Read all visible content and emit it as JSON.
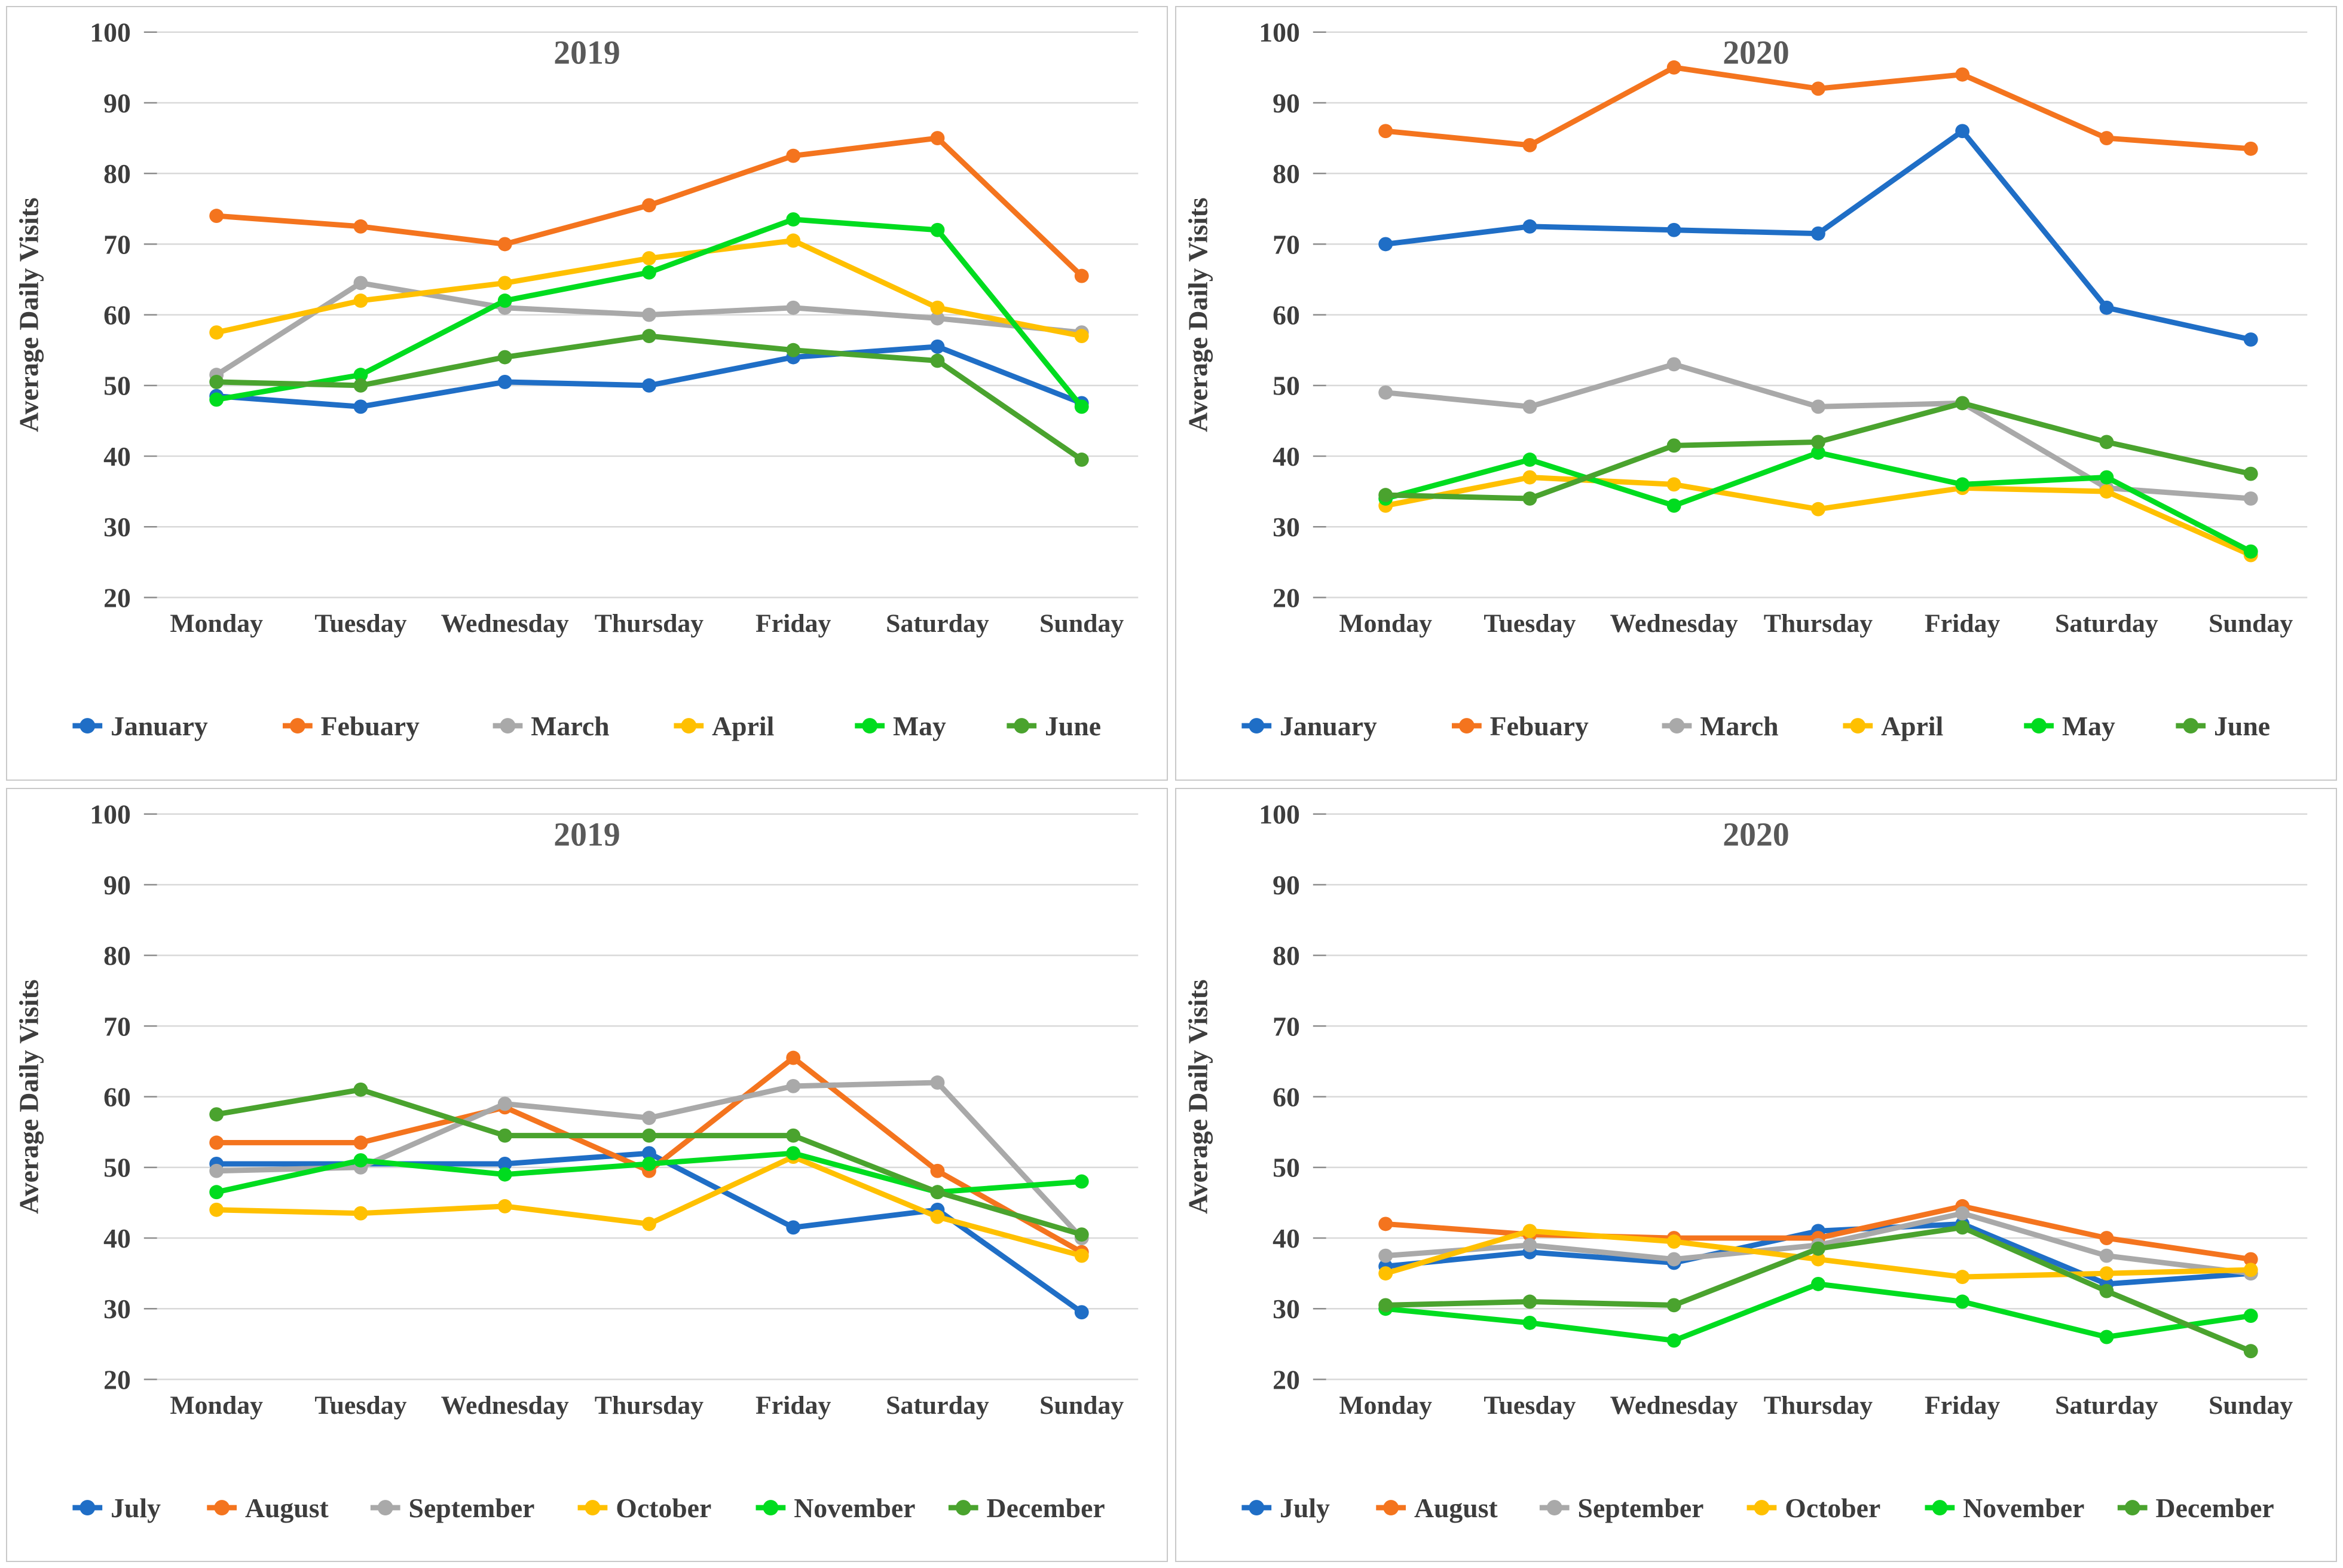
{
  "chart_data": [
    {
      "id": "2019-jan-jun",
      "type": "line",
      "title": "2019",
      "ylabel": "Average Daily Visits",
      "categories": [
        "Monday",
        "Tuesday",
        "Wednesday",
        "Thursday",
        "Friday",
        "Saturday",
        "Sunday"
      ],
      "ylim": [
        20,
        100
      ],
      "yticks": [
        100,
        90,
        80,
        70,
        60,
        50,
        40,
        30,
        20
      ],
      "grid": true,
      "legend_position": "bottom",
      "series": [
        {
          "name": "January",
          "color": "#1F6EC6",
          "values": [
            48.5,
            47,
            50.5,
            50,
            54,
            55.5,
            47.5
          ]
        },
        {
          "name": "Febuary",
          "color": "#F4741E",
          "values": [
            74,
            72.5,
            70,
            75.5,
            82.5,
            85,
            65.5
          ]
        },
        {
          "name": "March",
          "color": "#A9A9A9",
          "values": [
            51.5,
            64.5,
            61,
            60,
            61,
            59.5,
            57.5
          ]
        },
        {
          "name": "April",
          "color": "#FFC000",
          "values": [
            57.5,
            62,
            64.5,
            68,
            70.5,
            61,
            57
          ]
        },
        {
          "name": "May",
          "color": "#00DC1F",
          "values": [
            48,
            51.5,
            62,
            66,
            73.5,
            72,
            47
          ]
        },
        {
          "name": "June",
          "color": "#4AA32E",
          "values": [
            50.5,
            50,
            54,
            57,
            55,
            53.5,
            39.5
          ]
        }
      ]
    },
    {
      "id": "2020-jan-jun",
      "type": "line",
      "title": "2020",
      "ylabel": "Average Daily Visits",
      "categories": [
        "Monday",
        "Tuesday",
        "Wednesday",
        "Thursday",
        "Friday",
        "Saturday",
        "Sunday"
      ],
      "ylim": [
        20,
        100
      ],
      "yticks": [
        100,
        90,
        80,
        70,
        60,
        50,
        40,
        30,
        20
      ],
      "grid": true,
      "legend_position": "bottom",
      "series": [
        {
          "name": "January",
          "color": "#1F6EC6",
          "values": [
            70,
            72.5,
            72,
            71.5,
            86,
            61,
            56.5
          ]
        },
        {
          "name": "Febuary",
          "color": "#F4741E",
          "values": [
            86,
            84,
            95,
            92,
            94,
            85,
            83.5
          ]
        },
        {
          "name": "March",
          "color": "#A9A9A9",
          "values": [
            49,
            47,
            53,
            47,
            47.5,
            35.5,
            34
          ]
        },
        {
          "name": "April",
          "color": "#FFC000",
          "values": [
            33,
            37,
            36,
            32.5,
            35.5,
            35,
            26
          ]
        },
        {
          "name": "May",
          "color": "#00DC1F",
          "values": [
            34,
            39.5,
            33,
            40.5,
            36,
            37,
            26.5
          ]
        },
        {
          "name": "June",
          "color": "#4AA32E",
          "values": [
            34.5,
            34,
            41.5,
            42,
            47.5,
            42,
            37.5
          ]
        }
      ]
    },
    {
      "id": "2019-jul-dec",
      "type": "line",
      "title": "2019",
      "ylabel": "Average Daily Visits",
      "categories": [
        "Monday",
        "Tuesday",
        "Wednesday",
        "Thursday",
        "Friday",
        "Saturday",
        "Sunday"
      ],
      "ylim": [
        20,
        100
      ],
      "yticks": [
        100,
        90,
        80,
        70,
        60,
        50,
        40,
        30,
        20
      ],
      "grid": true,
      "legend_position": "bottom",
      "series": [
        {
          "name": "July",
          "color": "#1F6EC6",
          "values": [
            50.5,
            50.5,
            50.5,
            52,
            41.5,
            44,
            29.5
          ]
        },
        {
          "name": "August",
          "color": "#F4741E",
          "values": [
            53.5,
            53.5,
            58.5,
            49.5,
            65.5,
            49.5,
            38
          ]
        },
        {
          "name": "September",
          "color": "#A9A9A9",
          "values": [
            49.5,
            50,
            59,
            57,
            61.5,
            62,
            40
          ]
        },
        {
          "name": "October",
          "color": "#FFC000",
          "values": [
            44,
            43.5,
            44.5,
            42,
            51.5,
            43,
            37.5
          ]
        },
        {
          "name": "November",
          "color": "#00DC1F",
          "values": [
            46.5,
            51,
            49,
            50.5,
            52,
            46.5,
            48
          ]
        },
        {
          "name": "December",
          "color": "#4AA32E",
          "values": [
            57.5,
            61,
            54.5,
            54.5,
            54.5,
            46.5,
            40.5
          ]
        }
      ]
    },
    {
      "id": "2020-jul-dec",
      "type": "line",
      "title": "2020",
      "ylabel": "Average Daily Visits",
      "categories": [
        "Monday",
        "Tuesday",
        "Wednesday",
        "Thursday",
        "Friday",
        "Saturday",
        "Sunday"
      ],
      "ylim": [
        20,
        100
      ],
      "yticks": [
        100,
        90,
        80,
        70,
        60,
        50,
        40,
        30,
        20
      ],
      "grid": true,
      "legend_position": "bottom",
      "series": [
        {
          "name": "July",
          "color": "#1F6EC6",
          "values": [
            36,
            38,
            36.5,
            41,
            42,
            33.5,
            35
          ]
        },
        {
          "name": "August",
          "color": "#F4741E",
          "values": [
            42,
            40.5,
            40,
            40,
            44.5,
            40,
            37
          ]
        },
        {
          "name": "September",
          "color": "#A9A9A9",
          "values": [
            37.5,
            39,
            37,
            39,
            43.5,
            37.5,
            35
          ]
        },
        {
          "name": "October",
          "color": "#FFC000",
          "values": [
            35,
            41,
            39.5,
            37,
            34.5,
            35,
            35.5
          ]
        },
        {
          "name": "November",
          "color": "#00DC1F",
          "values": [
            30,
            28,
            25.5,
            33.5,
            31,
            26,
            29
          ]
        },
        {
          "name": "December",
          "color": "#4AA32E",
          "values": [
            30.5,
            31,
            30.5,
            38.5,
            41.5,
            32.5,
            24
          ]
        }
      ]
    }
  ],
  "style": {
    "title_color": "#595959",
    "axis_text_color": "#3D3D3D",
    "gridline_color": "#D9D9D9",
    "tick_color": "#8C8C8C"
  }
}
